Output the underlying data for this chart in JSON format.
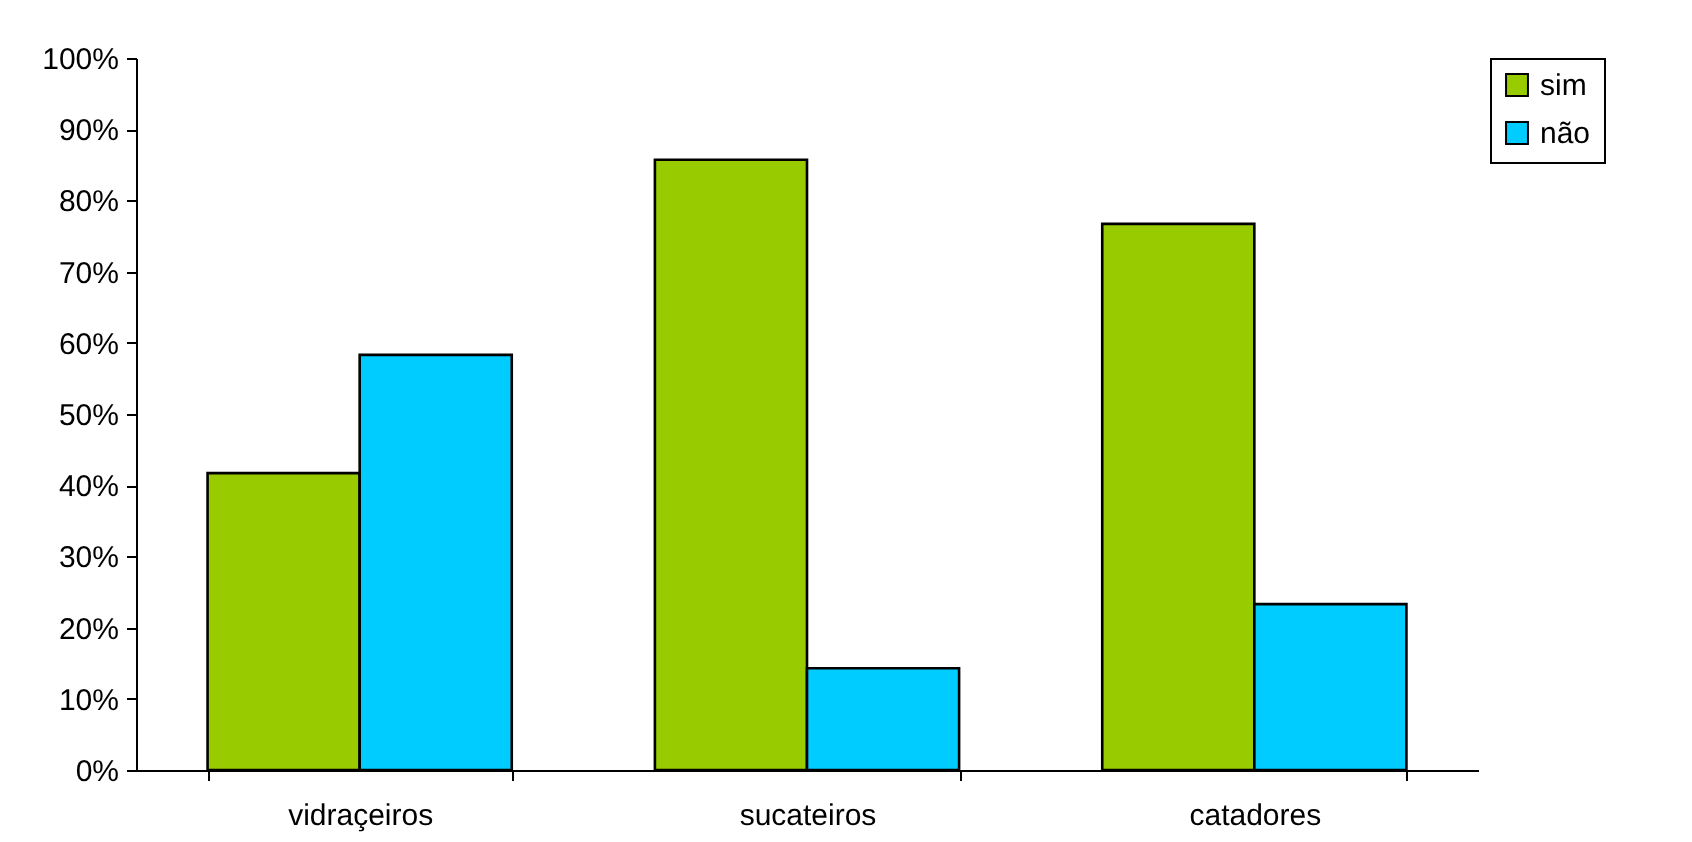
{
  "chart_data": {
    "type": "bar",
    "categories": [
      "vidraçeiros",
      "sucateiros",
      "catadores"
    ],
    "series": [
      {
        "name": "sim",
        "color": "#99cc00",
        "values": [
          41.7,
          85.7,
          76.7
        ]
      },
      {
        "name": "não",
        "color": "#00ccff",
        "values": [
          58.3,
          14.3,
          23.3
        ]
      }
    ],
    "ylim": [
      0,
      100
    ],
    "yticks": [
      {
        "value": 0,
        "label": "0%"
      },
      {
        "value": 10,
        "label": "10%"
      },
      {
        "value": 20,
        "label": "20%"
      },
      {
        "value": 30,
        "label": "30%"
      },
      {
        "value": 40,
        "label": "40%"
      },
      {
        "value": 50,
        "label": "50%"
      },
      {
        "value": 60,
        "label": "60%"
      },
      {
        "value": 70,
        "label": "70%"
      },
      {
        "value": 80,
        "label": "80%"
      },
      {
        "value": 90,
        "label": "90%"
      },
      {
        "value": 100,
        "label": "100%"
      }
    ],
    "grid": false,
    "legend": "right"
  }
}
